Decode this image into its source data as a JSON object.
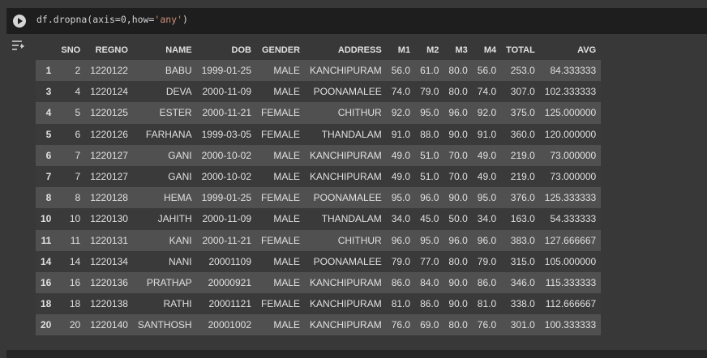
{
  "code": {
    "prefix": "df.dropna(axis=0,how=",
    "string": "'any'",
    "suffix": ")"
  },
  "icons": {
    "run": "play-circle-icon",
    "output": "output-toggle-icon"
  },
  "table": {
    "columns": [
      "",
      "SNO",
      "REGNO",
      "NAME",
      "DOB",
      "GENDER",
      "ADDRESS",
      "M1",
      "M2",
      "M3",
      "M4",
      "TOTAL",
      "AVG"
    ],
    "rows": [
      [
        "1",
        "2",
        "1220122",
        "BABU",
        "1999-01-25",
        "MALE",
        "KANCHIPURAM",
        "56.0",
        "61.0",
        "80.0",
        "56.0",
        "253.0",
        "84.333333"
      ],
      [
        "3",
        "4",
        "1220124",
        "DEVA",
        "2000-11-09",
        "MALE",
        "POONAMALEE",
        "74.0",
        "79.0",
        "80.0",
        "74.0",
        "307.0",
        "102.333333"
      ],
      [
        "4",
        "5",
        "1220125",
        "ESTER",
        "2000-11-21",
        "FEMALE",
        "CHITHUR",
        "92.0",
        "95.0",
        "96.0",
        "92.0",
        "375.0",
        "125.000000"
      ],
      [
        "5",
        "6",
        "1220126",
        "FARHANA",
        "1999-03-05",
        "FEMALE",
        "THANDALAM",
        "91.0",
        "88.0",
        "90.0",
        "91.0",
        "360.0",
        "120.000000"
      ],
      [
        "6",
        "7",
        "1220127",
        "GANI",
        "2000-10-02",
        "MALE",
        "KANCHIPURAM",
        "49.0",
        "51.0",
        "70.0",
        "49.0",
        "219.0",
        "73.000000"
      ],
      [
        "7",
        "7",
        "1220127",
        "GANI",
        "2000-10-02",
        "MALE",
        "KANCHIPURAM",
        "49.0",
        "51.0",
        "70.0",
        "49.0",
        "219.0",
        "73.000000"
      ],
      [
        "8",
        "8",
        "1220128",
        "HEMA",
        "1999-01-25",
        "FEMALE",
        "POONAMALEE",
        "95.0",
        "96.0",
        "90.0",
        "95.0",
        "376.0",
        "125.333333"
      ],
      [
        "10",
        "10",
        "1220130",
        "JAHITH",
        "2000-11-09",
        "MALE",
        "THANDALAM",
        "34.0",
        "45.0",
        "50.0",
        "34.0",
        "163.0",
        "54.333333"
      ],
      [
        "11",
        "11",
        "1220131",
        "KANI",
        "2000-11-21",
        "FEMALE",
        "CHITHUR",
        "96.0",
        "95.0",
        "96.0",
        "96.0",
        "383.0",
        "127.666667"
      ],
      [
        "14",
        "14",
        "1220134",
        "NANI",
        "20001109",
        "MALE",
        "POONAMALEE",
        "79.0",
        "77.0",
        "80.0",
        "79.0",
        "315.0",
        "105.000000"
      ],
      [
        "16",
        "16",
        "1220136",
        "PRATHAP",
        "20000921",
        "MALE",
        "KANCHIPURAM",
        "86.0",
        "84.0",
        "90.0",
        "86.0",
        "346.0",
        "115.333333"
      ],
      [
        "18",
        "18",
        "1220138",
        "RATHI",
        "20001121",
        "FEMALE",
        "KANCHIPURAM",
        "81.0",
        "86.0",
        "90.0",
        "81.0",
        "338.0",
        "112.666667"
      ],
      [
        "20",
        "20",
        "1220140",
        "SANTHOSH",
        "20001002",
        "MALE",
        "KANCHIPURAM",
        "76.0",
        "69.0",
        "80.0",
        "76.0",
        "301.0",
        "100.333333"
      ]
    ]
  }
}
